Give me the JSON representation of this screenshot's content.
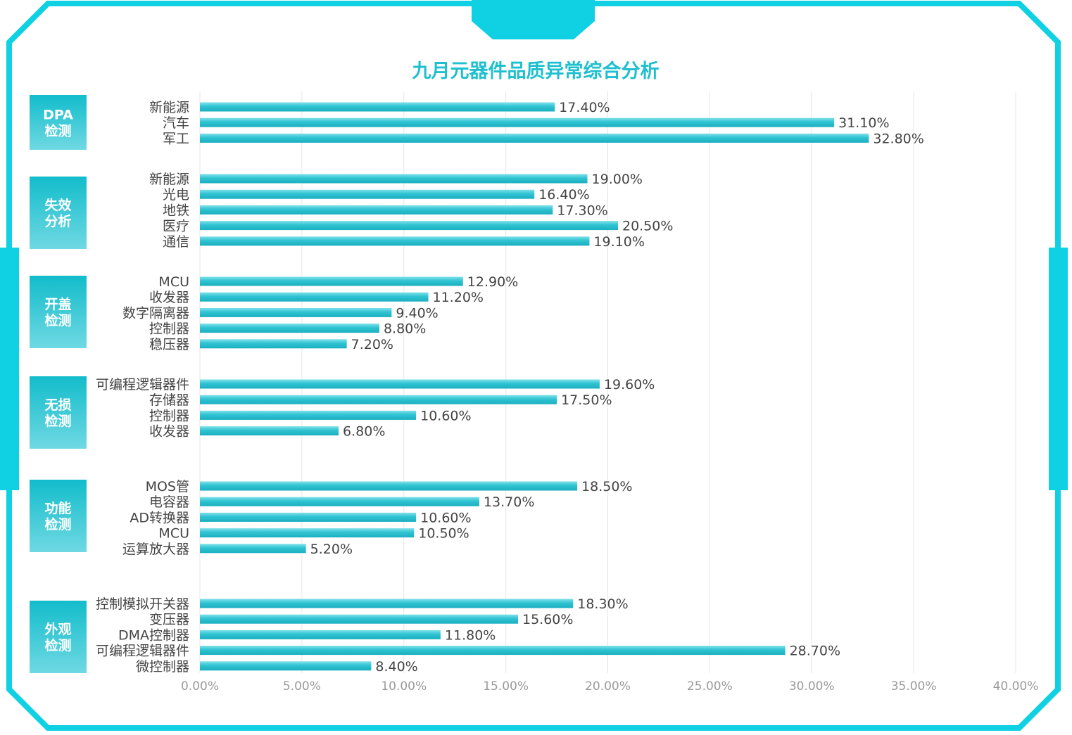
{
  "chart_data": {
    "type": "bar",
    "orientation": "horizontal",
    "title": "九月元器件品质异常综合分析",
    "xlabel": "",
    "ylabel": "",
    "xlim": [
      0,
      40
    ],
    "x_ticks": [
      0,
      5,
      10,
      15,
      20,
      25,
      30,
      35,
      40
    ],
    "x_tick_labels": [
      "0.00%",
      "5.00%",
      "10.00%",
      "15.00%",
      "20.00%",
      "25.00%",
      "30.00%",
      "35.00%",
      "40.00%"
    ],
    "grid": "vertical",
    "bar_color": "#2fc3d2",
    "groups": [
      {
        "name": "DPA\n检测",
        "categories": [
          "新能源",
          "汽车",
          "军工"
        ],
        "values": [
          17.4,
          31.1,
          32.8
        ],
        "value_labels": [
          "17.40%",
          "31.10%",
          "32.80%"
        ]
      },
      {
        "name": "失效\n分析",
        "categories": [
          "新能源",
          "光电",
          "地铁",
          "医疗",
          "通信"
        ],
        "values": [
          19.0,
          16.4,
          17.3,
          20.5,
          19.1
        ],
        "value_labels": [
          "19.00%",
          "16.40%",
          "17.30%",
          "20.50%",
          "19.10%"
        ]
      },
      {
        "name": "开盖\n检测",
        "categories": [
          "MCU",
          "收发器",
          "数字隔离器",
          "控制器",
          "稳压器"
        ],
        "values": [
          12.9,
          11.2,
          9.4,
          8.8,
          7.2
        ],
        "value_labels": [
          "12.90%",
          "11.20%",
          "9.40%",
          "8.80%",
          "7.20%"
        ]
      },
      {
        "name": "无损\n检测",
        "categories": [
          "可编程逻辑器件",
          "存储器",
          "控制器",
          "收发器"
        ],
        "values": [
          19.6,
          17.5,
          10.6,
          6.8
        ],
        "value_labels": [
          "19.60%",
          "17.50%",
          "10.60%",
          "6.80%"
        ]
      },
      {
        "name": "功能\n检测",
        "categories": [
          "MOS管",
          "电容器",
          "AD转换器",
          "MCU",
          "运算放大器"
        ],
        "values": [
          18.5,
          13.7,
          10.6,
          10.5,
          5.2
        ],
        "value_labels": [
          "18.50%",
          "13.70%",
          "10.60%",
          "10.50%",
          "5.20%"
        ]
      },
      {
        "name": "外观\n检测",
        "categories": [
          "控制模拟开关器",
          "变压器",
          "DMA控制器",
          "可编程逻辑器件",
          "微控制器"
        ],
        "values": [
          18.3,
          15.6,
          11.8,
          28.7,
          8.4
        ],
        "value_labels": [
          "18.30%",
          "15.60%",
          "11.80%",
          "28.70%",
          "8.40%"
        ]
      }
    ]
  }
}
